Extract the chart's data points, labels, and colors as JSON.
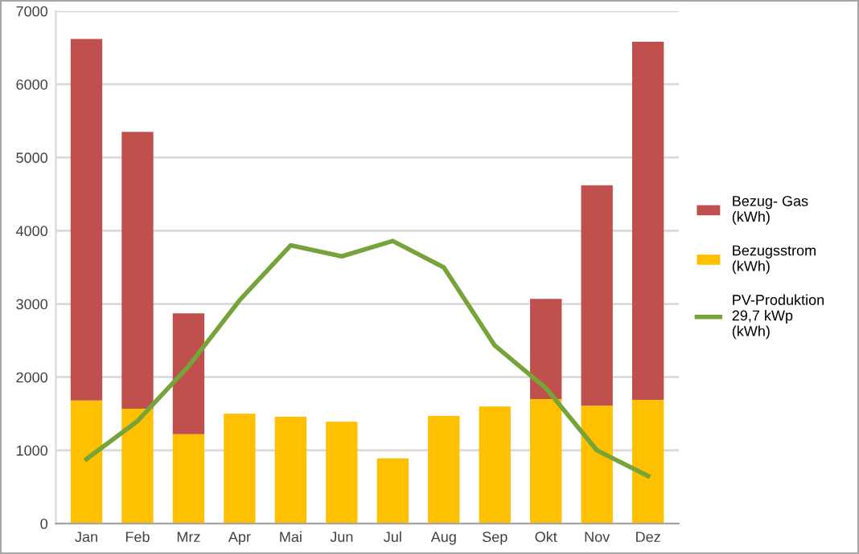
{
  "chart_data": {
    "type": "bar",
    "stacked": true,
    "categories": [
      "Jan",
      "Feb",
      "Mrz",
      "Apr",
      "Mai",
      "Jun",
      "Jul",
      "Aug",
      "Sep",
      "Okt",
      "Nov",
      "Dez"
    ],
    "series": [
      {
        "name": "Bezugsstrom\n(kWh)",
        "color": "#ffc000",
        "values": [
          1680,
          1570,
          1220,
          1500,
          1460,
          1390,
          890,
          1470,
          1600,
          1700,
          1610,
          1690
        ]
      },
      {
        "name": "Bezug- Gas\n(kWh)",
        "color": "#c0504d",
        "values": [
          4940,
          3780,
          1650,
          null,
          null,
          null,
          null,
          null,
          null,
          1370,
          3010,
          4890
        ]
      },
      {
        "name": "PV-Produktion\n29,7 kWp\n(kWh)",
        "type": "line",
        "color": "#77a33b",
        "values": [
          880,
          1400,
          2150,
          3050,
          3800,
          3650,
          3860,
          3500,
          2430,
          1850,
          1000,
          650
        ]
      }
    ],
    "ylim": [
      0,
      7000
    ],
    "yticks": [
      0,
      1000,
      2000,
      3000,
      4000,
      5000,
      6000,
      7000
    ],
    "grid": "y",
    "legend": "right",
    "marker": "none",
    "line_style": "solid"
  }
}
